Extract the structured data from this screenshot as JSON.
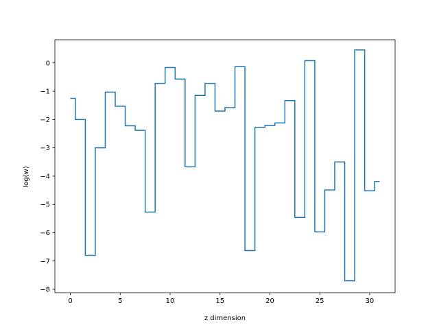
{
  "chart_data": {
    "type": "line",
    "drawstyle": "steps-mid",
    "title": "",
    "xlabel": "z dimension",
    "ylabel": "log(w)",
    "xlim": [
      -1.55,
      32.55
    ],
    "ylim": [
      -8.12,
      0.82
    ],
    "xticks": [
      0,
      5,
      10,
      15,
      20,
      25,
      30
    ],
    "yticks": [
      -8,
      -7,
      -6,
      -5,
      -4,
      -3,
      -2,
      -1,
      0
    ],
    "grid": false,
    "legend": "none",
    "color": "#1f77b4",
    "series": [
      {
        "x": [
          0,
          1,
          2,
          3,
          4,
          5,
          6,
          7,
          8,
          9,
          10,
          11,
          12,
          13,
          14,
          15,
          16,
          17,
          18,
          19,
          20,
          21,
          22,
          23,
          24,
          25,
          26,
          27,
          28,
          29,
          30,
          31
        ],
        "y": [
          -1.25,
          -2.0,
          -6.8,
          -3.0,
          -1.03,
          -1.53,
          -2.22,
          -2.38,
          -5.27,
          -0.72,
          -0.16,
          -0.57,
          -3.67,
          -1.15,
          -0.72,
          -1.7,
          -1.58,
          -0.13,
          -6.63,
          -2.28,
          -2.21,
          -2.12,
          -1.33,
          -5.46,
          0.08,
          -5.97,
          -4.49,
          -3.5,
          -7.7,
          0.46,
          -4.52,
          -4.19
        ]
      }
    ]
  }
}
